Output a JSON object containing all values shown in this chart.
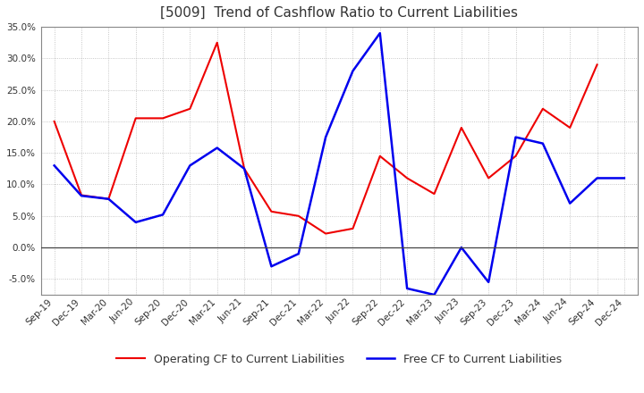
{
  "title": "[5009]  Trend of Cashflow Ratio to Current Liabilities",
  "x_labels": [
    "Sep-19",
    "Dec-19",
    "Mar-20",
    "Jun-20",
    "Sep-20",
    "Dec-20",
    "Mar-21",
    "Jun-21",
    "Sep-21",
    "Dec-21",
    "Mar-22",
    "Jun-22",
    "Sep-22",
    "Dec-22",
    "Mar-23",
    "Jun-23",
    "Sep-23",
    "Dec-23",
    "Mar-24",
    "Jun-24",
    "Sep-24",
    "Dec-24"
  ],
  "operating_cf": [
    0.2,
    0.083,
    0.077,
    0.205,
    0.205,
    0.22,
    0.325,
    0.125,
    0.057,
    0.05,
    0.022,
    0.03,
    0.145,
    0.11,
    0.085,
    0.19,
    0.11,
    0.145,
    0.22,
    0.19,
    0.29,
    null
  ],
  "free_cf": [
    0.13,
    0.082,
    0.077,
    0.04,
    0.052,
    0.13,
    0.158,
    0.125,
    -0.03,
    -0.01,
    0.175,
    0.28,
    0.34,
    -0.065,
    -0.075,
    0.0,
    -0.055,
    0.175,
    0.165,
    0.07,
    0.11,
    0.11
  ],
  "ylim": [
    -0.075,
    0.35
  ],
  "yticks": [
    -0.05,
    0.0,
    0.05,
    0.1,
    0.15,
    0.2,
    0.25,
    0.3,
    0.35
  ],
  "operating_color": "#EE0000",
  "free_color": "#0000EE",
  "background_color": "#FFFFFF",
  "plot_bg_color": "#FFFFFF",
  "grid_color": "#888888",
  "title_color": "#333333",
  "tick_color": "#333333",
  "legend_operating": "Operating CF to Current Liabilities",
  "legend_free": "Free CF to Current Liabilities",
  "title_fontsize": 11,
  "tick_fontsize": 7.5,
  "legend_fontsize": 9
}
